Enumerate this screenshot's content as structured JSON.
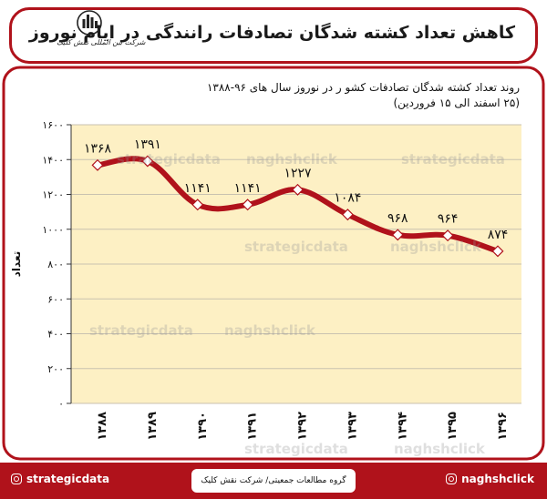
{
  "header": {
    "title": "کاهش تعداد کشته شدگان تصادفات رانندگی در ایام نوروز",
    "logo_text": "شرکت بین المللی نقش کلیک"
  },
  "subtitle": {
    "line1": "روند تعداد کشته شدگان تصادفات کشو ر در نوروز سال های ۹۶-۱۳۸۸",
    "line2": "(۲۵ اسفند الی ۱۵ فروردین)"
  },
  "watermarks": {
    "strategic": "strategicdata",
    "naghsh": "naghshclick"
  },
  "footer": {
    "left_handle": "strategicdata",
    "right_handle": "naghshclick",
    "center_text": "گروه مطالعات جمعیتی/ شرکت نقش کلیک"
  },
  "colors": {
    "frame": "#b0121b",
    "plot_bg": "#fdf0c4",
    "line": "#b0121b",
    "marker": "#ffffff"
  },
  "chart_data": {
    "type": "line",
    "title": "",
    "xlabel": "",
    "ylabel": "تعداد",
    "categories": [
      "۱۳۸۸",
      "۱۳۸۹",
      "۱۳۹۰",
      "۱۳۹۱",
      "۱۳۹۲",
      "۱۳۹۳",
      "۱۳۹۴",
      "۱۳۹۵",
      "۱۳۹۶"
    ],
    "values": [
      1368,
      1391,
      1141,
      1141,
      1227,
      1084,
      968,
      964,
      874
    ],
    "data_labels": [
      "۱۳۶۸",
      "۱۳۹۱",
      "۱۱۴۱",
      "۱۱۴۱",
      "۱۲۲۷",
      "۱۰۸۴",
      "۹۶۸",
      "۹۶۴",
      "۸۷۴"
    ],
    "yticks": [
      0,
      200,
      400,
      600,
      800,
      1000,
      1200,
      1400,
      1600
    ],
    "ytick_labels": [
      "۰",
      "۲۰۰",
      "۴۰۰",
      "۶۰۰",
      "۸۰۰",
      "۱۰۰۰",
      "۱۲۰۰",
      "۱۴۰۰",
      "۱۶۰۰"
    ],
    "ylim": [
      0,
      1600
    ],
    "grid": true,
    "smooth": true
  }
}
